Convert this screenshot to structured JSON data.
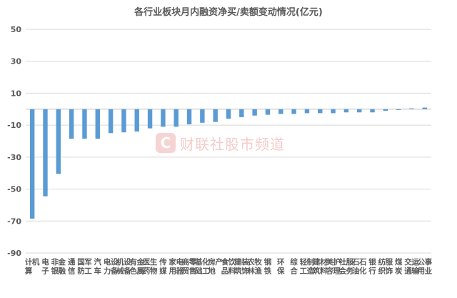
{
  "chart_data": {
    "type": "bar",
    "title": "各行业板块月内融资净买/卖额变动情况(亿元)",
    "xlabel": "",
    "ylabel": "",
    "ylim": [
      -90,
      50
    ],
    "yticks": [
      50,
      30,
      10,
      -10,
      -30,
      -50,
      -70,
      -90
    ],
    "grid": true,
    "bar_color": "#5B9BD5",
    "categories": [
      "计算机",
      "电子",
      "非银金融",
      "通信",
      "国防军工",
      "汽车",
      "电力设备",
      "机械设备",
      "有色金属",
      "医药生物",
      "传媒",
      "家用电器",
      "商贸零售",
      "基础化工",
      "房地产",
      "食品饮料",
      "建筑装饰",
      "农林牧渔",
      "钢铁",
      "环保",
      "综合",
      "轻工制造",
      "建筑材料",
      "美容护理",
      "社会服务",
      "石油石化",
      "银行",
      "纺织服饰",
      "煤炭",
      "交通运输",
      "公用事业"
    ],
    "values": [
      -68.5,
      -54.5,
      -40.5,
      -18.5,
      -18.5,
      -18.5,
      -15.0,
      -14.5,
      -14.0,
      -12.0,
      -11.0,
      -11.0,
      -9.5,
      -8.5,
      -8.0,
      -6.0,
      -5.0,
      -4.0,
      -3.5,
      -3.0,
      -3.0,
      -2.5,
      -2.5,
      -2.5,
      -2.0,
      -2.0,
      -2.0,
      -1.0,
      -0.5,
      0.5,
      1.0
    ]
  },
  "watermark": {
    "logo_letter": "C",
    "text": "财联社股市频道"
  }
}
